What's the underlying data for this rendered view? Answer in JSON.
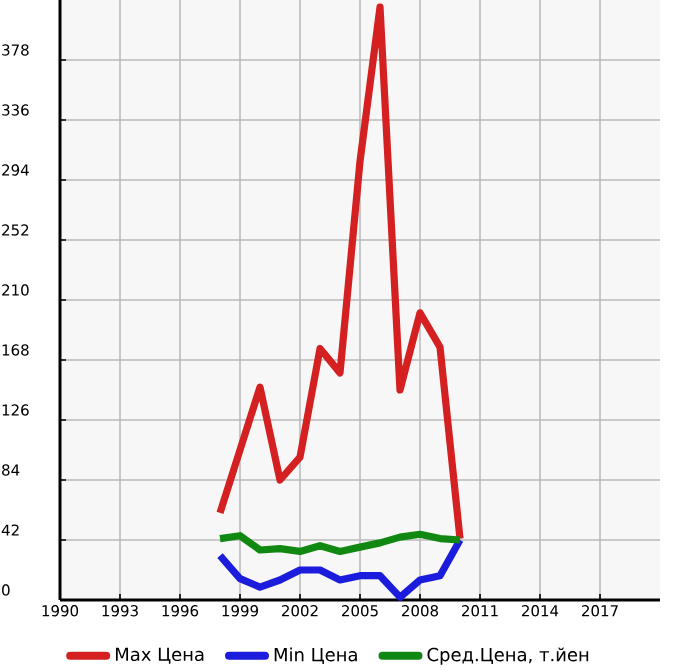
{
  "chart_data": {
    "type": "line",
    "x": [
      1998,
      1999,
      2000,
      2001,
      2002,
      2003,
      2004,
      2005,
      2006,
      2007,
      2008,
      2009,
      2010
    ],
    "series": [
      {
        "name": "Max Цена",
        "color": "#d42020",
        "values": [
          61,
          105,
          149,
          84,
          100,
          176,
          159,
          307,
          415,
          147,
          201,
          177,
          43
        ]
      },
      {
        "name": "Min Цена",
        "color": "#1c1cdc",
        "values": [
          31,
          15,
          9,
          14,
          21,
          21,
          14,
          17,
          17,
          2,
          14,
          17,
          42
        ]
      },
      {
        "name": "Сред.Цена, т.йен",
        "color": "#118811",
        "values": [
          43,
          45,
          35,
          36,
          34,
          38,
          34,
          37,
          40,
          44,
          46,
          43,
          42
        ]
      }
    ],
    "xlim": [
      1990,
      2020
    ],
    "ylim": [
      0,
      420
    ],
    "xticks": [
      1990,
      1993,
      1996,
      1999,
      2002,
      2005,
      2008,
      2011,
      2014,
      2017
    ],
    "yticks": [
      0,
      42,
      84,
      126,
      168,
      210,
      252,
      294,
      336,
      378
    ],
    "grid": true,
    "legend": "bottom",
    "marker": "none",
    "line_style": "solid"
  }
}
